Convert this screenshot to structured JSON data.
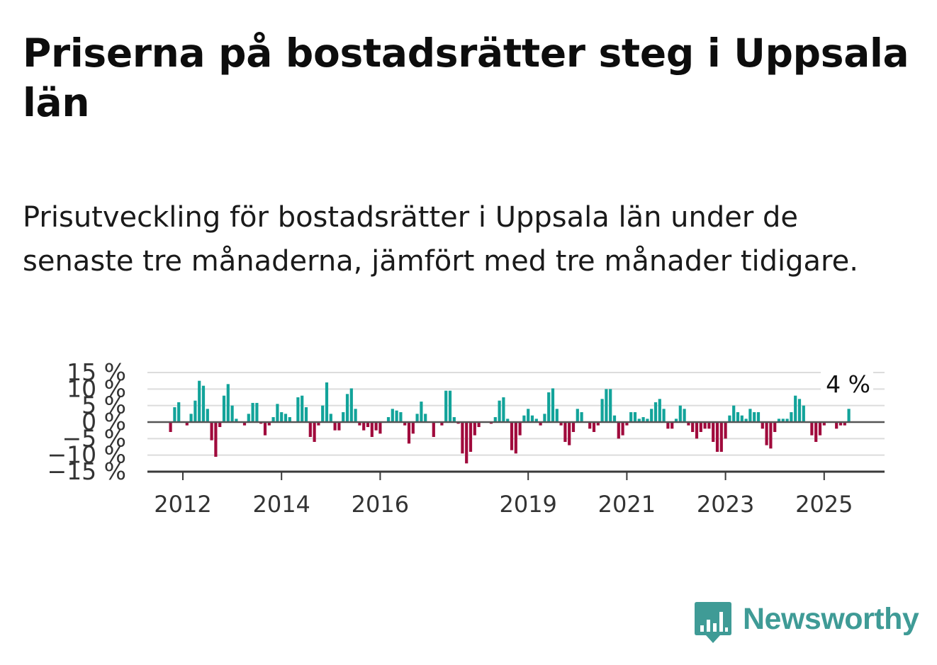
{
  "title": "Priserna på bostadsrätter steg i Uppsala län",
  "subtitle": "Prisutveckling för bostadsrätter i Uppsala län under de senaste tre månaderna, jämfört med tre månader tidigare.",
  "logo": {
    "text": "Newsworthy",
    "icon": "bar-chart-speech-bubble-icon",
    "color": "#3f9b96"
  },
  "colors": {
    "positive": "#12a39a",
    "negative": "#a00a3c",
    "grid": "#dcdcdc",
    "axis": "#3a3a3a"
  },
  "chart_data": {
    "type": "bar",
    "title": "Priserna på bostadsrätter steg i Uppsala län",
    "subtitle": "Prisutveckling för bostadsrätter i Uppsala län under de senaste tre månaderna, jämfört med tre månader tidigare.",
    "xlabel": "",
    "ylabel": "",
    "x_tick_labels": [
      "2012",
      "2014",
      "2016",
      "2019",
      "2021",
      "2023",
      "2025"
    ],
    "y_tick_labels": [
      "15 %",
      "10 %",
      "5 %",
      "0 %",
      "−5 %",
      "−10 %",
      "−15 %"
    ],
    "y_ticks": [
      15,
      10,
      5,
      0,
      -5,
      -10,
      -15
    ],
    "ylim": [
      -15,
      15
    ],
    "grid": true,
    "start": "2011-10",
    "frequency": "monthly",
    "last_value_label": "4 %",
    "values": [
      -3,
      4.5,
      6,
      0,
      -1,
      2.5,
      6.5,
      12.5,
      11,
      4,
      -5.5,
      -10.5,
      -1.5,
      8,
      11.5,
      5,
      1,
      0,
      -1,
      2.5,
      5.8,
      5.8,
      -0.5,
      -4,
      -1,
      1.5,
      5.5,
      3,
      2.5,
      1.5,
      0,
      7.5,
      8,
      4.5,
      -4.5,
      -6,
      -1,
      5,
      12,
      2.5,
      -2.5,
      -2.5,
      3,
      8.5,
      10.2,
      4,
      -1,
      -2.5,
      -1.5,
      -4.5,
      -2.5,
      -3.5,
      0,
      1.5,
      4,
      3.5,
      3,
      -1,
      -6.5,
      -3.5,
      2.5,
      6.2,
      2.5,
      0,
      -4.5,
      0,
      -1,
      9.5,
      9.5,
      1.5,
      -0.5,
      -9.5,
      -12.5,
      -9,
      -4,
      -1.5,
      0,
      0,
      -0.5,
      1.5,
      6.5,
      7.5,
      1,
      -8.5,
      -9.5,
      -4,
      2,
      4,
      2,
      1,
      -1,
      2.5,
      9,
      10.2,
      4,
      -1,
      -6,
      -7,
      -3,
      4,
      3,
      0,
      -2,
      -3,
      -1,
      7,
      10,
      10,
      2,
      -5,
      -4,
      -1,
      3,
      3,
      1,
      1.5,
      1,
      4,
      6,
      7,
      4,
      -2,
      -2,
      1,
      5,
      4,
      -1,
      -3,
      -5,
      -3,
      -2,
      -2,
      -6,
      -9,
      -9,
      -5,
      2,
      5,
      3,
      2,
      1,
      4,
      3,
      3,
      -2,
      -7,
      -8,
      -3,
      1,
      1,
      1,
      3,
      8,
      7,
      5,
      0,
      -4,
      -6,
      -4,
      -1,
      0,
      0,
      -2,
      -1,
      -1,
      4
    ]
  }
}
